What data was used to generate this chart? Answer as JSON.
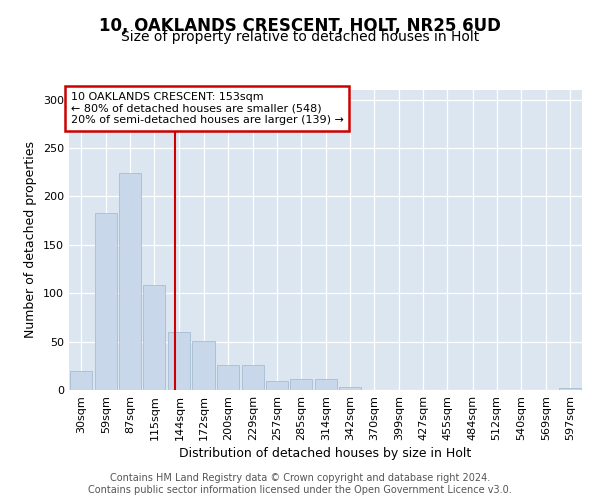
{
  "title_line1": "10, OAKLANDS CRESCENT, HOLT, NR25 6UD",
  "title_line2": "Size of property relative to detached houses in Holt",
  "xlabel": "Distribution of detached houses by size in Holt",
  "ylabel": "Number of detached properties",
  "bar_color": "#c8d8ea",
  "bar_edgecolor": "#a8bdd4",
  "bins": [
    "30sqm",
    "59sqm",
    "87sqm",
    "115sqm",
    "144sqm",
    "172sqm",
    "200sqm",
    "229sqm",
    "257sqm",
    "285sqm",
    "314sqm",
    "342sqm",
    "370sqm",
    "399sqm",
    "427sqm",
    "455sqm",
    "484sqm",
    "512sqm",
    "540sqm",
    "569sqm",
    "597sqm"
  ],
  "bin_left_edges": [
    30,
    59,
    87,
    115,
    144,
    172,
    200,
    229,
    257,
    285,
    314,
    342,
    370,
    399,
    427,
    455,
    484,
    512,
    540,
    569,
    597
  ],
  "bin_width": 28,
  "values": [
    20,
    183,
    224,
    108,
    60,
    51,
    26,
    26,
    9,
    11,
    11,
    3,
    0,
    0,
    0,
    0,
    0,
    0,
    0,
    0,
    2
  ],
  "vline_x": 153,
  "vline_color": "#cc0000",
  "annotation_text": "10 OAKLANDS CRESCENT: 153sqm\n← 80% of detached houses are smaller (548)\n20% of semi-detached houses are larger (139) →",
  "annotation_box_color": "white",
  "annotation_box_edgecolor": "#cc0000",
  "ylim": [
    0,
    310
  ],
  "footer_text": "Contains HM Land Registry data © Crown copyright and database right 2024.\nContains public sector information licensed under the Open Government Licence v3.0.",
  "fig_bg_color": "#ffffff",
  "plot_bg_color": "#dce6f0",
  "grid_color": "#ffffff",
  "title_fontsize": 12,
  "subtitle_fontsize": 10,
  "axis_label_fontsize": 9,
  "tick_fontsize": 8,
  "footer_fontsize": 7,
  "annotation_fontsize": 8
}
